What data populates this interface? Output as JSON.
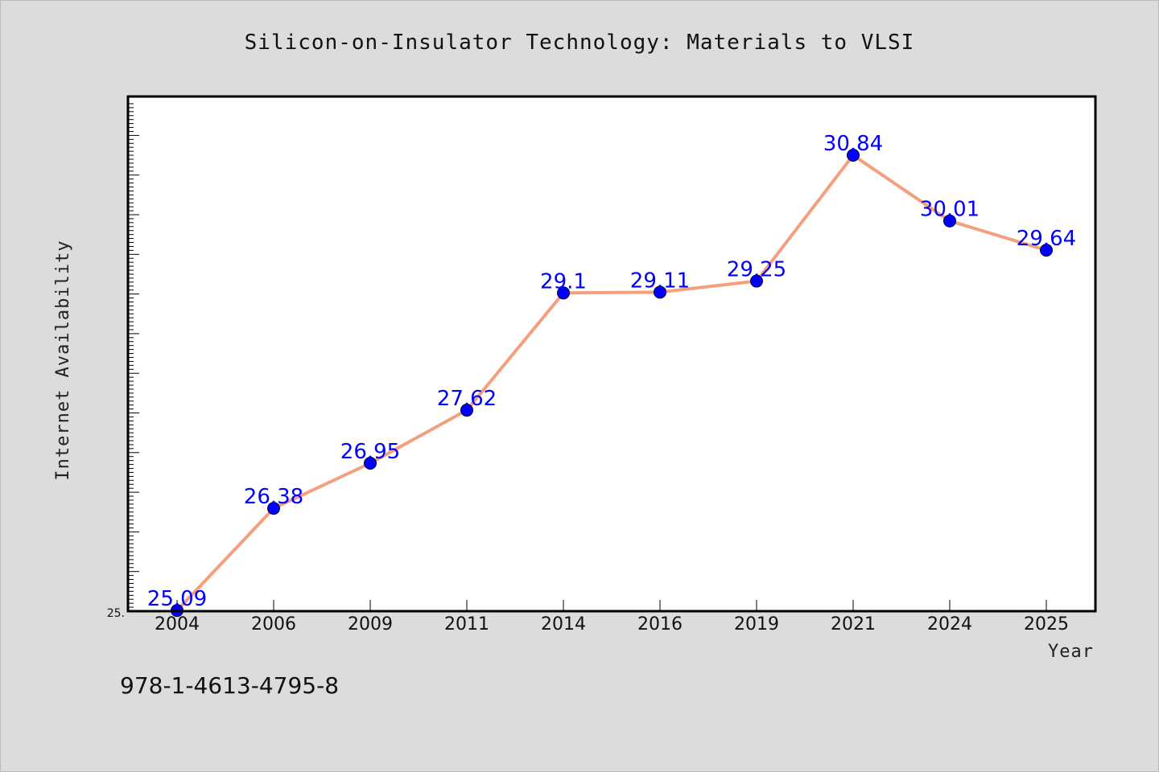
{
  "chart_data": {
    "type": "line",
    "title": "Silicon-on-Insulator Technology: Materials to VLSI",
    "xlabel": "Year",
    "ylabel": "Internet Availability",
    "categories": [
      "2004",
      "2006",
      "2009",
      "2011",
      "2014",
      "2016",
      "2019",
      "2021",
      "2024",
      "2025"
    ],
    "series": [
      {
        "values": [
          25.09,
          26.38,
          26.95,
          27.62,
          29.1,
          29.11,
          29.25,
          30.84,
          30.01,
          29.64
        ],
        "labels": [
          "25.09",
          "26.38",
          "26.95",
          "27.62",
          "29.1",
          "29.11",
          "29.25",
          "30.84",
          "30.01",
          "29.64"
        ]
      }
    ],
    "ylim": [
      25.0,
      31.5
    ],
    "ytick_label": "25.",
    "grid": false,
    "legend": "none",
    "colors": {
      "line": "#f4a07e",
      "marker": "#0000ff",
      "data_label": "#0000ff",
      "plot_bg": "#ffffff",
      "page_bg": "#dcdcdc",
      "frame": "#000000"
    }
  },
  "footnote": "978-1-4613-4795-8"
}
